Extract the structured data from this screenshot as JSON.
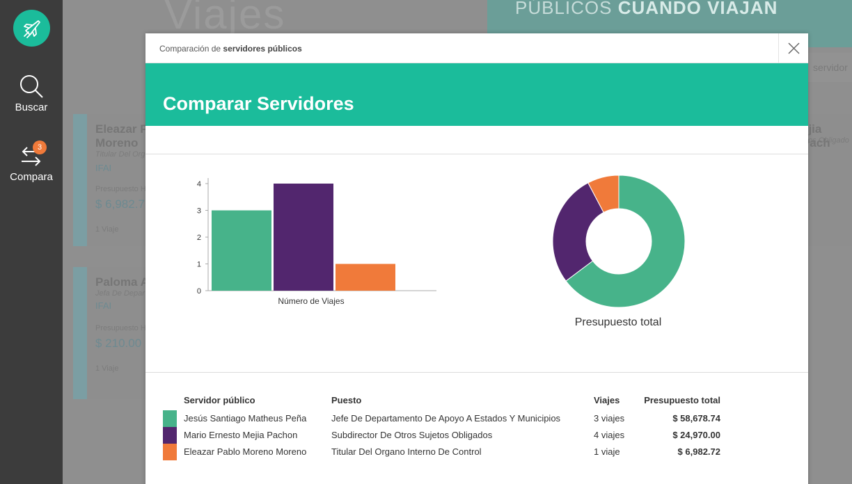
{
  "sidebar": {
    "logo_icon": "plane-icon",
    "items": [
      {
        "label": "Buscar",
        "icon": "search-icon"
      },
      {
        "label": "Compara",
        "icon": "compare-arrows-icon",
        "badge": "3"
      }
    ]
  },
  "background": {
    "brand": "Viajes",
    "banner_text_light": "PÚBLICOS",
    "banner_text_bold": "CUANDO VIAJAN",
    "search_placeholder": "servidor",
    "cards": [
      {
        "name_line1": "Eleazar P",
        "name_line2": "Moreno",
        "role": "Titular Del Org",
        "org": "IFAI",
        "label": "Presupuesto H",
        "amount": "$ 6,982.7",
        "trips": "1 Viaje"
      },
      {
        "name_line1": "Paloma A",
        "name_line2": "",
        "role": "Jefa De Depar",
        "org": "IFAI",
        "label": "Presupuesto H",
        "amount": "$ 210.00",
        "trips": "1 Viaje"
      }
    ],
    "right_card": {
      "name": "ejia Pach",
      "role": "etos Obligado"
    }
  },
  "modal": {
    "crumb_prefix": "Comparación de",
    "crumb_bold": "servidores públicos",
    "title": "Comparar Servidores",
    "donut_label": "Presupuesto total"
  },
  "chart_data": [
    {
      "type": "bar",
      "xlabel": "Número de Viajes",
      "ylim": [
        0,
        4
      ],
      "yticks": [
        0,
        1,
        2,
        3,
        4
      ],
      "series": [
        {
          "values": [
            3
          ],
          "color": "#47b38a"
        },
        {
          "values": [
            4
          ],
          "color": "#52266e"
        },
        {
          "values": [
            1
          ],
          "color": "#f07a3a"
        }
      ]
    },
    {
      "type": "pie",
      "subtype": "donut",
      "title": "Presupuesto total",
      "values": [
        58678.74,
        24970.0,
        6982.72
      ],
      "colors": [
        "#47b38a",
        "#52266e",
        "#f07a3a"
      ]
    }
  ],
  "table": {
    "headers": {
      "name": "Servidor público",
      "role": "Puesto",
      "trips": "Viajes",
      "budget": "Presupuesto total"
    },
    "rows": [
      {
        "color": "#47b38a",
        "name": "Jesús Santiago Matheus Peña",
        "role": "Jefe De Departamento De Apoyo A Estados Y Municipios",
        "trips": "3 viajes",
        "budget": "$ 58,678.74"
      },
      {
        "color": "#52266e",
        "name": "Mario Ernesto Mejia Pachon",
        "role": "Subdirector De Otros Sujetos Obligados",
        "trips": "4 viajes",
        "budget": "$ 24,970.00"
      },
      {
        "color": "#f07a3a",
        "name": "Eleazar Pablo Moreno Moreno",
        "role": "Titular Del Organo Interno De Control",
        "trips": "1 viaje",
        "budget": "$ 6,982.72"
      }
    ]
  }
}
